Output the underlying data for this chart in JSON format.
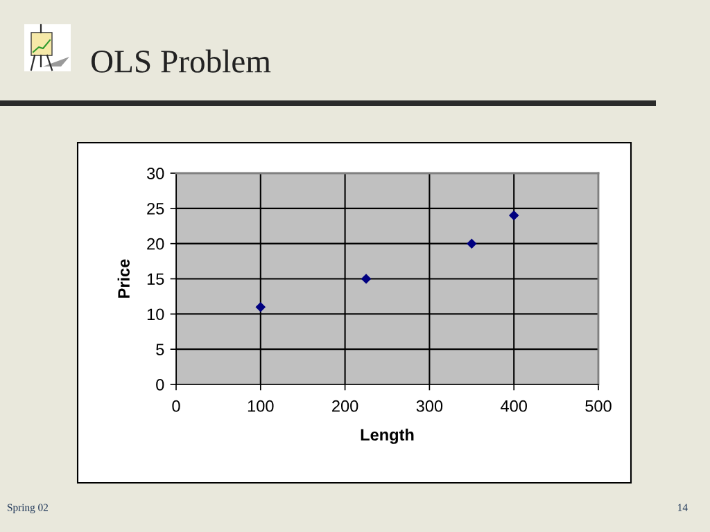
{
  "chart_data": {
    "type": "scatter",
    "title": "OLS Problem",
    "xlabel": "Length",
    "ylabel": "Price",
    "x": [
      100,
      225,
      350,
      400
    ],
    "values": [
      11,
      15,
      20,
      24
    ],
    "color": "#000080",
    "marker": "diamond",
    "xlim": [
      0,
      500
    ],
    "xticks": [
      0,
      100,
      200,
      300,
      400,
      500
    ],
    "ylim": [
      0,
      30
    ],
    "yticks": [
      0,
      5,
      10,
      15,
      20,
      25,
      30
    ],
    "grid": true,
    "annotations": [
      "Spring 02",
      "14"
    ]
  }
}
